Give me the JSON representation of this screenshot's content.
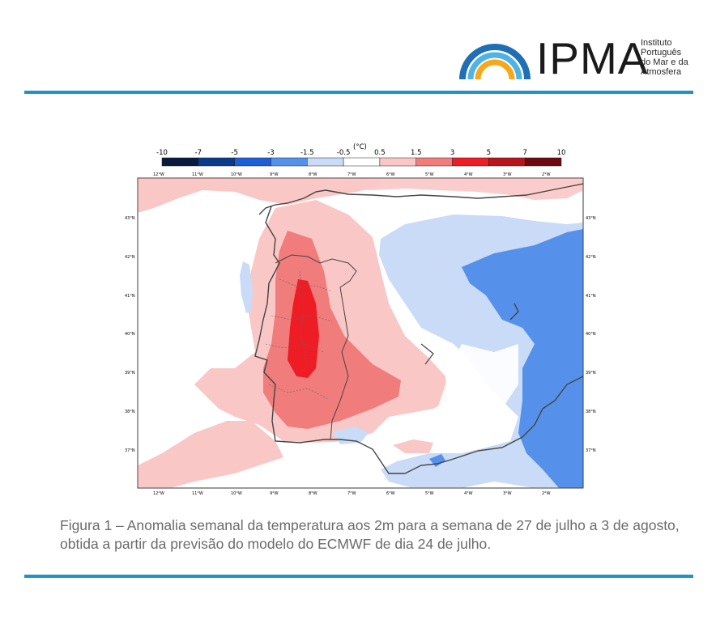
{
  "logo": {
    "text": "IPMA",
    "sub_lines": [
      "Instituto",
      "Português",
      "do Mar e da",
      "Atmosfera"
    ]
  },
  "colorbar": {
    "unit": "(°C)",
    "labels": [
      "-10",
      "-7",
      "-5",
      "-3",
      "-1.5",
      "-0.5",
      "0.5",
      "1.5",
      "3",
      "5",
      "7",
      "10"
    ],
    "colors": [
      "#081a3d",
      "#0a3a8a",
      "#1d5fd6",
      "#5591ea",
      "#c9dbf7",
      "#ffffff",
      "#f9c8c6",
      "#f07c7c",
      "#ee1c24",
      "#b8141b",
      "#6e0a0f"
    ]
  },
  "map": {
    "x_ticks": [
      "12°W",
      "11°W",
      "10°W",
      "9°W",
      "8°W",
      "7°W",
      "6°W",
      "5°W",
      "4°W",
      "3°W",
      "2°W"
    ],
    "y_ticks": [
      "43°N",
      "42°N",
      "41°N",
      "40°N",
      "39°N",
      "38°N",
      "37°N"
    ]
  },
  "caption": "Figura 1 – Anomalia semanal da temperatura aos 2m para a semana de 27 de julho a 3 de agosto, obtida a partir da previsão do modelo do ECMWF de dia 24 de julho."
}
